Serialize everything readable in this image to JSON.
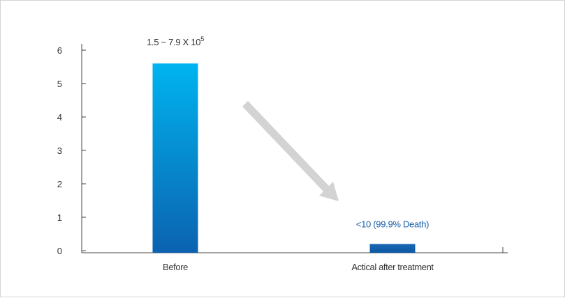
{
  "chart_data": {
    "type": "bar",
    "title": "",
    "xlabel": "",
    "ylabel": "",
    "ylim": [
      0,
      6
    ],
    "yticks": [
      0,
      1,
      2,
      3,
      4,
      5,
      6
    ],
    "categories": [
      "Before",
      "Actical after treatment"
    ],
    "values": [
      5.6,
      0.2
    ],
    "data_labels": [
      {
        "base": "1.5 ~ 7.9 X 10",
        "sup": "5",
        "color": "#333333"
      },
      {
        "base": "<10 (99.9% Death)",
        "sup": "",
        "color": "#1a5fa8"
      }
    ],
    "bar_colors": [
      {
        "top": "#00b4ef",
        "bottom": "#0b62b0"
      },
      {
        "top": "#1a66b3",
        "bottom": "#0b5aa6"
      }
    ],
    "arrow_color": "#d3d3d3",
    "grid": false,
    "legend": "none"
  }
}
